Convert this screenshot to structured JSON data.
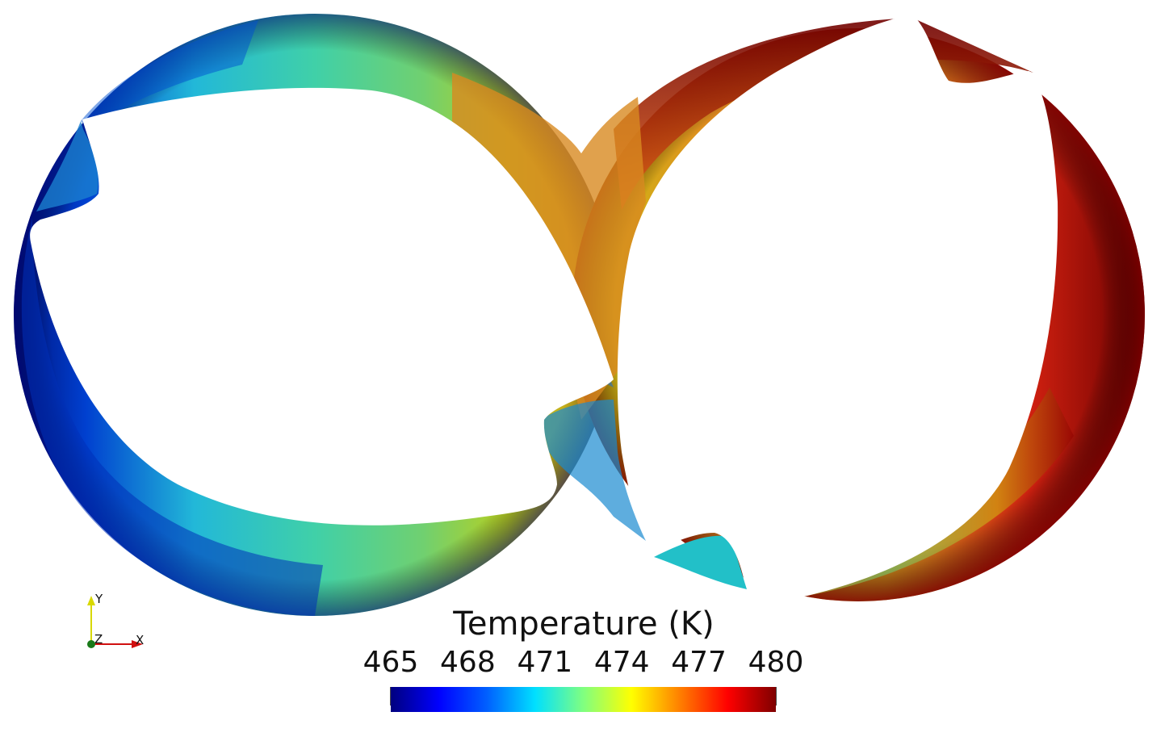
{
  "legend": {
    "title": "Temperature (K)",
    "ticks": [
      "465",
      "468",
      "471",
      "474",
      "477",
      "480"
    ],
    "range": [
      465,
      480
    ],
    "colormap": [
      "#00007f",
      "#0000ff",
      "#0080ff",
      "#00ffff",
      "#80ff80",
      "#ffff00",
      "#ff8000",
      "#ff0000",
      "#7f0000"
    ]
  },
  "axes": {
    "y_label": "Y",
    "z_label": "Z",
    "x_label": "X",
    "y_color": "#d8d800",
    "x_color": "#d01010",
    "z_color": "#1a7a1a"
  },
  "field_colors": {
    "cold": "#00209a",
    "blue": "#1a5fd6",
    "cyan": "#22c8c8",
    "green": "#6ad070",
    "yellow": "#c8c800",
    "orange": "#e09020",
    "red": "#d01010",
    "dark_red": "#7a0000"
  }
}
